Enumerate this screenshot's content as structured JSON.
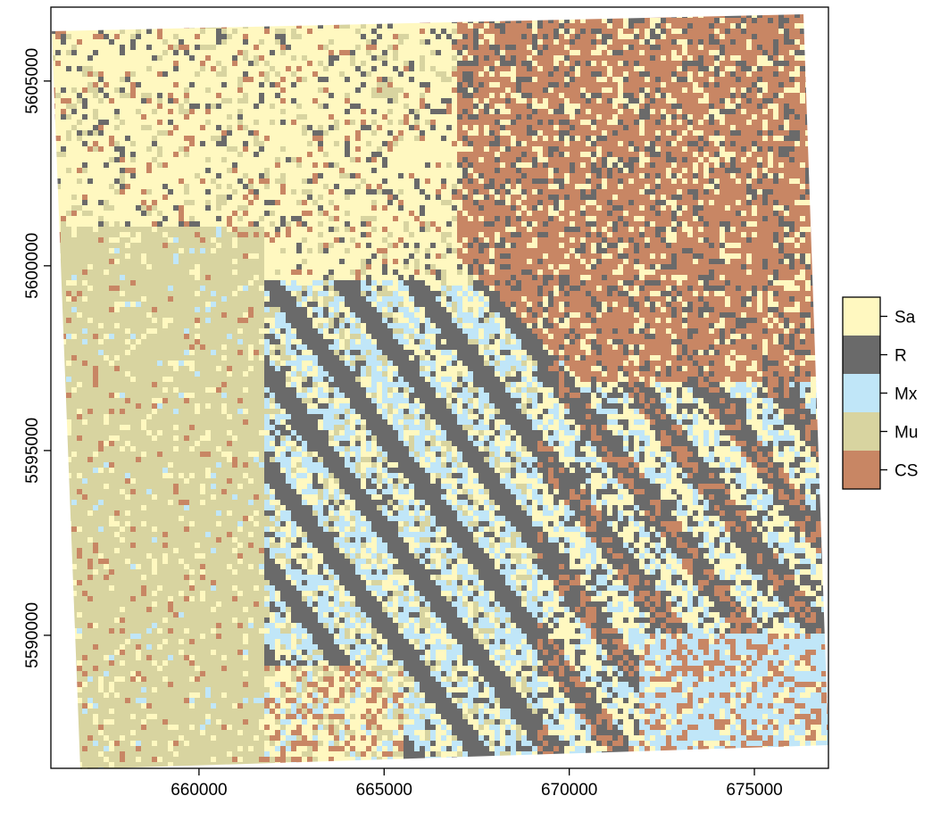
{
  "chart_data": {
    "type": "heatmap",
    "title": "",
    "xlabel": "",
    "ylabel": "",
    "xlim": [
      656000,
      677000
    ],
    "ylim": [
      5586400,
      5607000
    ],
    "x_ticks": [
      660000,
      665000,
      670000,
      675000
    ],
    "y_ticks": [
      5590000,
      5595000,
      5600000,
      5605000
    ],
    "x_tick_labels": [
      "660000",
      "665000",
      "670000",
      "675000"
    ],
    "y_tick_labels": [
      "5590000",
      "5595000",
      "5600000",
      "5605000"
    ],
    "legend_position": "right",
    "classes": [
      {
        "label": "Sa",
        "color": "#fff8c0"
      },
      {
        "label": "R",
        "color": "#6a6a6a"
      },
      {
        "label": "Mx",
        "color": "#c0e6f8"
      },
      {
        "label": "Mu",
        "color": "#d8d4a0"
      },
      {
        "label": "CS",
        "color": "#c88664"
      }
    ],
    "regions": [
      {
        "class": "Mu",
        "desc": "west side, broad band"
      },
      {
        "class": "Sa",
        "desc": "north-west and north-centre"
      },
      {
        "class": "CS",
        "desc": "north-east block"
      },
      {
        "class": "Mx",
        "desc": "central-south diagonal belt"
      },
      {
        "class": "R",
        "desc": "south-east, streaked"
      }
    ],
    "grid": false
  }
}
